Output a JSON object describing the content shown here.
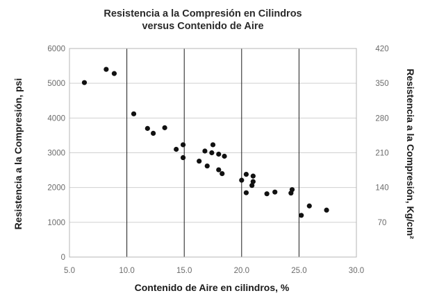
{
  "chart_data": {
    "type": "scatter",
    "title": [
      "Resistencia a la Compresión en Cilindros",
      "versus Contenido de Aire"
    ],
    "xlabel": "Contenido de Aire en cilindros, %",
    "ylabel_left": "Resistencia a la Compresión, psi",
    "ylabel_right": "Resistencia a la Compresión, Kg/cm²",
    "xlim": [
      5,
      30
    ],
    "ylim": [
      0,
      6000
    ],
    "x_ticks": [
      "5.0",
      "10.0",
      "15.0",
      "20.0",
      "25.0",
      "30.0"
    ],
    "y_ticks_left": [
      "0",
      "1000",
      "2000",
      "3000",
      "4000",
      "5000",
      "6000"
    ],
    "y_ticks_right": [
      "70",
      "140",
      "210",
      "280",
      "350",
      "420"
    ],
    "grid": true,
    "series": [
      {
        "points": [
          [
            6.3,
            5020
          ],
          [
            8.2,
            5400
          ],
          [
            8.9,
            5280
          ],
          [
            10.6,
            4120
          ],
          [
            11.8,
            3700
          ],
          [
            12.3,
            3560
          ],
          [
            13.3,
            3720
          ],
          [
            14.3,
            3100
          ],
          [
            14.9,
            3230
          ],
          [
            14.9,
            2860
          ],
          [
            16.3,
            2760
          ],
          [
            16.8,
            3050
          ],
          [
            17.0,
            2620
          ],
          [
            17.5,
            3230
          ],
          [
            17.4,
            3000
          ],
          [
            18.0,
            2960
          ],
          [
            18.5,
            2900
          ],
          [
            18.0,
            2510
          ],
          [
            18.3,
            2400
          ],
          [
            20.0,
            2210
          ],
          [
            20.4,
            2380
          ],
          [
            20.4,
            1850
          ],
          [
            21.0,
            2330
          ],
          [
            21.0,
            2170
          ],
          [
            20.9,
            2060
          ],
          [
            22.2,
            1820
          ],
          [
            22.9,
            1870
          ],
          [
            24.4,
            1940
          ],
          [
            24.3,
            1840
          ],
          [
            25.2,
            1200
          ],
          [
            25.9,
            1470
          ],
          [
            27.4,
            1350
          ]
        ]
      }
    ]
  }
}
